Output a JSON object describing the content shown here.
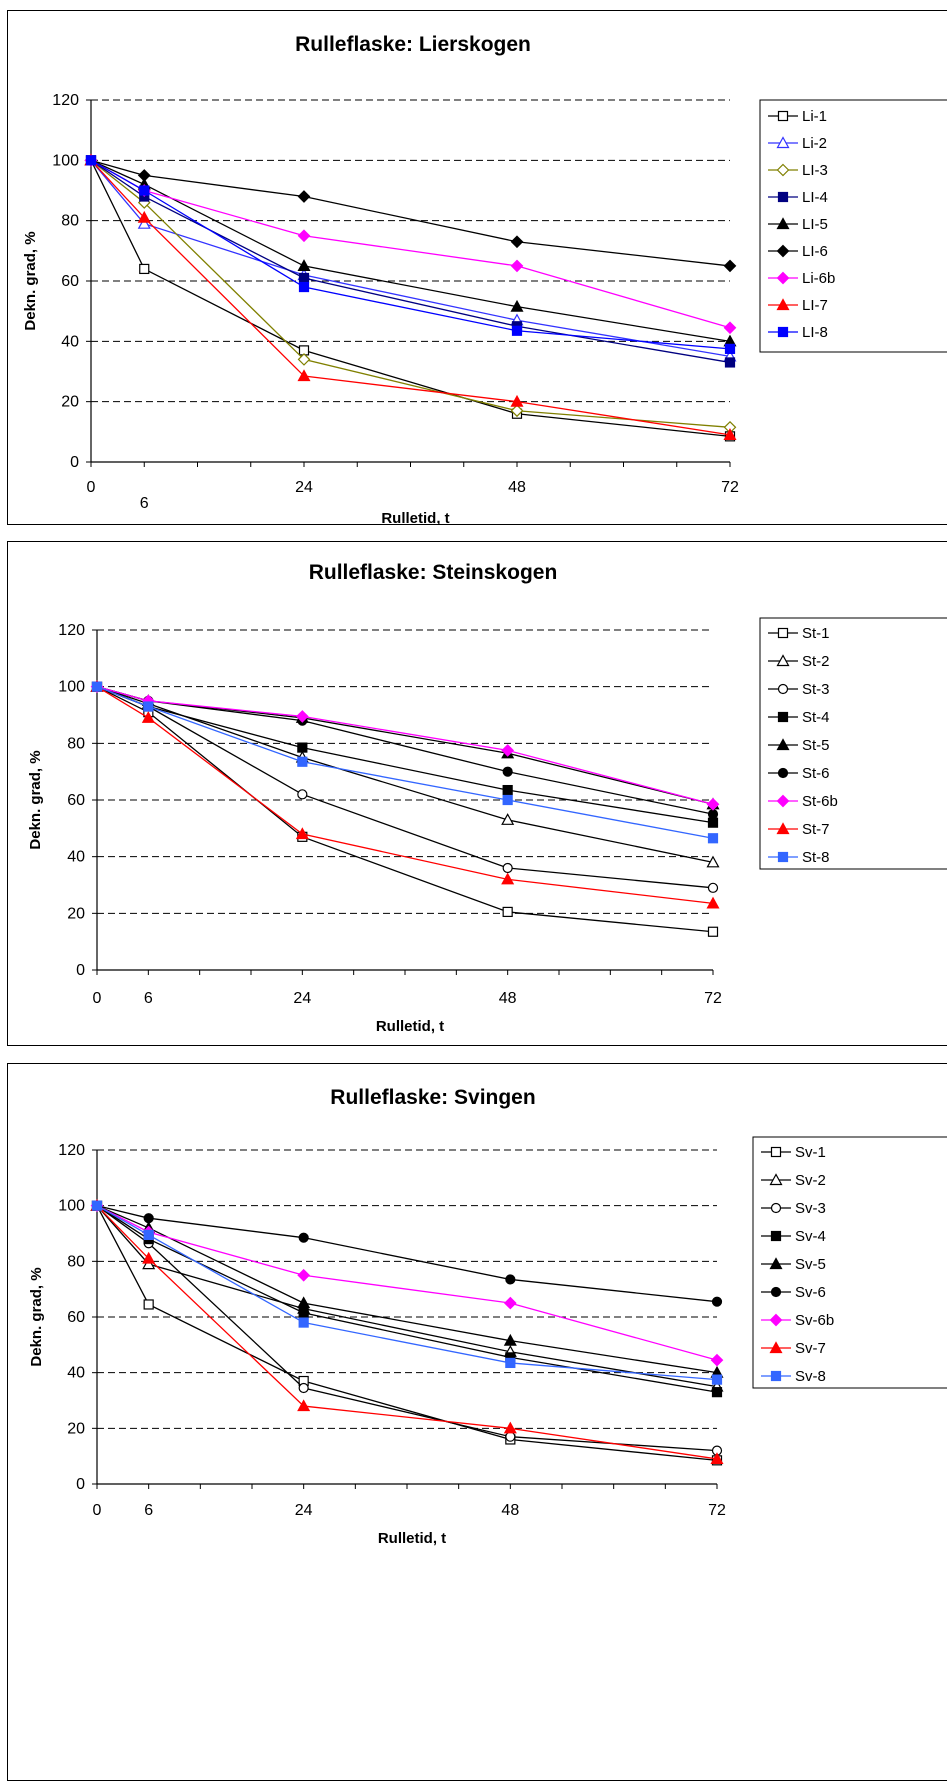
{
  "chart_data": [
    {
      "type": "line",
      "title": "Rulleflaske: Lierskogen",
      "xlabel": "Rulletid, t",
      "ylabel": "Dekn. grad, %",
      "x": [
        0,
        6,
        24,
        48,
        72
      ],
      "xticks": [
        "0",
        "6",
        "24",
        "48",
        "72"
      ],
      "xlim": [
        0,
        72
      ],
      "ylim": [
        0,
        120
      ],
      "yticks": [
        0,
        20,
        40,
        60,
        80,
        100,
        120
      ],
      "grid": "horizontal dashed",
      "legend_position": "right",
      "series": [
        {
          "name": "Li-1",
          "values": [
            100,
            64,
            37,
            16,
            8.5
          ],
          "color": "#000000",
          "marker": "square-open"
        },
        {
          "name": "Li-2",
          "values": [
            100,
            79,
            62,
            47,
            35
          ],
          "color": "#3333ff",
          "marker": "triangle-open"
        },
        {
          "name": "LI-3",
          "values": [
            100,
            86,
            34,
            17,
            11.5
          ],
          "color": "#808000",
          "marker": "diamond-open"
        },
        {
          "name": "LI-4",
          "values": [
            100,
            88,
            61,
            45,
            33
          ],
          "color": "#000080",
          "marker": "square-filled"
        },
        {
          "name": "LI-5",
          "values": [
            100,
            92,
            65,
            51.5,
            40
          ],
          "color": "#000000",
          "marker": "triangle-filled"
        },
        {
          "name": "LI-6",
          "values": [
            100,
            95,
            88,
            73,
            65
          ],
          "color": "#000000",
          "marker": "diamond-filled"
        },
        {
          "name": "Li-6b",
          "values": [
            100,
            90,
            75,
            65,
            44.5
          ],
          "color": "#ff00ff",
          "marker": "diamond-filled"
        },
        {
          "name": "LI-7",
          "values": [
            100,
            81,
            28.5,
            20,
            9
          ],
          "color": "#ff0000",
          "marker": "triangle-filled"
        },
        {
          "name": "LI-8",
          "values": [
            100,
            90,
            58,
            43.5,
            37.5
          ],
          "color": "#0000ff",
          "marker": "square-filled"
        }
      ]
    },
    {
      "type": "line",
      "title": "Rulleflaske: Steinskogen",
      "xlabel": "Rulletid, t",
      "ylabel": "Dekn. grad, %",
      "x": [
        0,
        6,
        24,
        48,
        72
      ],
      "xticks": [
        "0",
        "6",
        "24",
        "48",
        "72"
      ],
      "xlim": [
        0,
        72
      ],
      "ylim": [
        0,
        120
      ],
      "yticks": [
        0,
        20,
        40,
        60,
        80,
        100,
        120
      ],
      "grid": "horizontal dashed",
      "legend_position": "right",
      "series": [
        {
          "name": "St-1",
          "values": [
            100,
            91,
            47,
            20.5,
            13.5
          ],
          "color": "#000000",
          "marker": "square-open"
        },
        {
          "name": "St-2",
          "values": [
            100,
            94,
            75,
            53,
            38
          ],
          "color": "#000000",
          "marker": "triangle-open"
        },
        {
          "name": "St-3",
          "values": [
            100,
            93,
            62,
            36,
            29
          ],
          "color": "#000000",
          "marker": "circle-open"
        },
        {
          "name": "St-4",
          "values": [
            100,
            93,
            78.5,
            63.5,
            52
          ],
          "color": "#000000",
          "marker": "square-filled"
        },
        {
          "name": "St-5",
          "values": [
            100,
            95,
            89,
            76.5,
            58.5
          ],
          "color": "#000000",
          "marker": "triangle-filled"
        },
        {
          "name": "St-6",
          "values": [
            100,
            95,
            88,
            70,
            55
          ],
          "color": "#000000",
          "marker": "circle-filled"
        },
        {
          "name": "St-6b",
          "values": [
            100,
            95,
            89.5,
            77.5,
            58.5
          ],
          "color": "#ff00ff",
          "marker": "diamond-filled"
        },
        {
          "name": "St-7",
          "values": [
            100,
            89,
            48,
            32,
            23.5
          ],
          "color": "#ff0000",
          "marker": "triangle-filled"
        },
        {
          "name": "St-8",
          "values": [
            100,
            93,
            73.5,
            60,
            46.5
          ],
          "color": "#3366ff",
          "marker": "square-filled"
        }
      ]
    },
    {
      "type": "line",
      "title": "Rulleflaske: Svingen",
      "xlabel": "Rulletid, t",
      "ylabel": "Dekn. grad, %",
      "x": [
        0,
        6,
        24,
        48,
        72
      ],
      "xticks": [
        "0",
        "6",
        "24",
        "48",
        "72"
      ],
      "xlim": [
        0,
        72
      ],
      "ylim": [
        0,
        120
      ],
      "yticks": [
        0,
        20,
        40,
        60,
        80,
        100,
        120
      ],
      "grid": "horizontal dashed",
      "legend_position": "right",
      "series": [
        {
          "name": "Sv-1",
          "values": [
            100,
            64.5,
            37,
            16,
            8.5
          ],
          "color": "#000000",
          "marker": "square-open"
        },
        {
          "name": "Sv-2",
          "values": [
            100,
            79,
            63,
            47.5,
            35
          ],
          "color": "#000000",
          "marker": "triangle-open"
        },
        {
          "name": "Sv-3",
          "values": [
            100,
            86.5,
            34.5,
            17,
            12
          ],
          "color": "#000000",
          "marker": "circle-open"
        },
        {
          "name": "Sv-4",
          "values": [
            100,
            88,
            61.5,
            45.5,
            33
          ],
          "color": "#000000",
          "marker": "square-filled"
        },
        {
          "name": "Sv-5",
          "values": [
            100,
            92,
            65,
            51.5,
            40
          ],
          "color": "#000000",
          "marker": "triangle-filled"
        },
        {
          "name": "Sv-6",
          "values": [
            100,
            95.5,
            88.5,
            73.5,
            65.5
          ],
          "color": "#000000",
          "marker": "circle-filled"
        },
        {
          "name": "Sv-6b",
          "values": [
            100,
            90.5,
            75,
            65,
            44.5
          ],
          "color": "#ff00ff",
          "marker": "diamond-filled"
        },
        {
          "name": "Sv-7",
          "values": [
            100,
            81,
            28,
            20,
            9
          ],
          "color": "#ff0000",
          "marker": "triangle-filled"
        },
        {
          "name": "Sv-8",
          "values": [
            100,
            89.5,
            58,
            43.5,
            37.5
          ],
          "color": "#3366ff",
          "marker": "square-filled"
        }
      ]
    }
  ]
}
